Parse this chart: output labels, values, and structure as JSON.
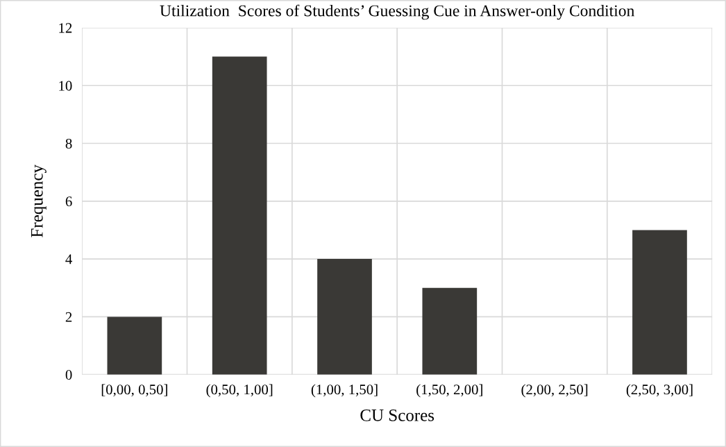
{
  "chart_data": {
    "type": "bar",
    "title": "Utilization  Scores of Students’ Guessing Cue in Answer-only Condition",
    "xlabel": "CU Scores",
    "ylabel": "Frequency",
    "categories": [
      "[0,00, 0,50]",
      "(0,50, 1,00]",
      "(1,00, 1,50]",
      "(1,50, 2,00]",
      "(2,00, 2,50]",
      "(2,50, 3,00]"
    ],
    "values": [
      2,
      11,
      4,
      3,
      0,
      5
    ],
    "color": "#3a3936",
    "ylim": [
      0,
      12
    ],
    "yticks": [
      0,
      2,
      4,
      6,
      8,
      10,
      12
    ],
    "grid": true
  }
}
